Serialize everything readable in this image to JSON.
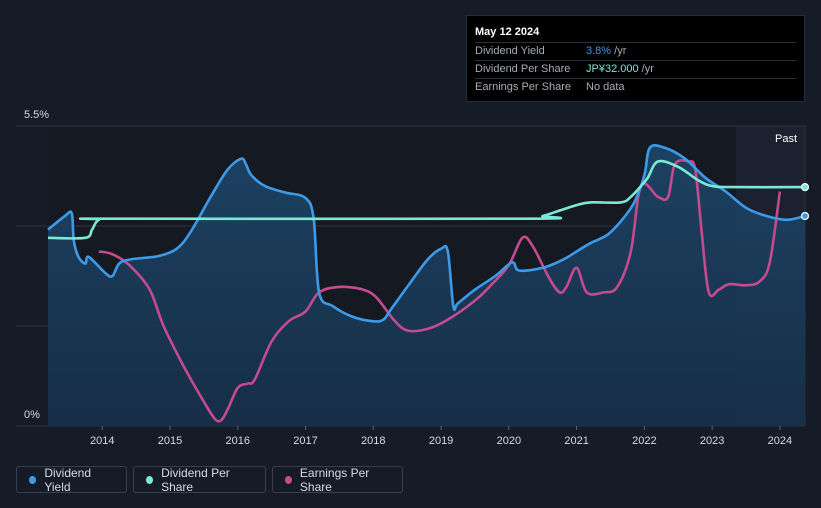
{
  "tooltip": {
    "date": "May 12 2024",
    "rows": [
      {
        "label": "Dividend Yield",
        "value": "3.8%",
        "unit": " /yr",
        "color": "#3d9ae8"
      },
      {
        "label": "Dividend Per Share",
        "value": "JP¥32.000",
        "unit": " /yr",
        "color": "#7ce8d6"
      },
      {
        "label": "Earnings Per Share",
        "value": "No data",
        "unit": "",
        "color": "#a7adb8"
      }
    ]
  },
  "legend": [
    {
      "label": "Dividend Yield",
      "color": "#3d9ae8"
    },
    {
      "label": "Dividend Per Share",
      "color": "#7ce8d6"
    },
    {
      "label": "Earnings Per Share",
      "color": "#c44b8e"
    }
  ],
  "chart_data": {
    "type": "line",
    "y_top_label": "5.5%",
    "y_bottom_label": "0%",
    "past_label": "Past",
    "ylim": [
      0,
      5.5
    ],
    "xlim": [
      2013.2,
      2024.37
    ],
    "x_ticks": [
      2014,
      2015,
      2016,
      2017,
      2018,
      2019,
      2020,
      2021,
      2022,
      2023,
      2024
    ],
    "x_tick_labels": [
      "2014",
      "2015",
      "2016",
      "2017",
      "2018",
      "2019",
      "2020",
      "2021",
      "2022",
      "2023",
      "2024"
    ],
    "past_region_start": 2023.37,
    "series": [
      {
        "name": "Dividend Yield",
        "color": "#3d9ae8",
        "fill": true,
        "points": [
          [
            2013.2,
            3.6
          ],
          [
            2013.45,
            3.85
          ],
          [
            2013.55,
            3.9
          ],
          [
            2013.58,
            3.4
          ],
          [
            2013.65,
            3.1
          ],
          [
            2013.75,
            2.98
          ],
          [
            2013.8,
            3.1
          ],
          [
            2014.05,
            2.8
          ],
          [
            2014.15,
            2.75
          ],
          [
            2014.25,
            2.98
          ],
          [
            2014.4,
            3.05
          ],
          [
            2014.6,
            3.08
          ],
          [
            2014.85,
            3.12
          ],
          [
            2015.1,
            3.25
          ],
          [
            2015.3,
            3.55
          ],
          [
            2015.6,
            4.2
          ],
          [
            2015.85,
            4.7
          ],
          [
            2016.05,
            4.9
          ],
          [
            2016.12,
            4.8
          ],
          [
            2016.2,
            4.6
          ],
          [
            2016.4,
            4.4
          ],
          [
            2016.7,
            4.28
          ],
          [
            2017.0,
            4.18
          ],
          [
            2017.12,
            3.8
          ],
          [
            2017.2,
            2.45
          ],
          [
            2017.4,
            2.2
          ],
          [
            2017.7,
            2.0
          ],
          [
            2018.0,
            1.92
          ],
          [
            2018.15,
            1.95
          ],
          [
            2018.25,
            2.12
          ],
          [
            2018.5,
            2.55
          ],
          [
            2018.8,
            3.05
          ],
          [
            2019.0,
            3.25
          ],
          [
            2019.1,
            3.2
          ],
          [
            2019.18,
            2.2
          ],
          [
            2019.25,
            2.25
          ],
          [
            2019.5,
            2.5
          ],
          [
            2019.8,
            2.75
          ],
          [
            2020.05,
            3.0
          ],
          [
            2020.15,
            2.85
          ],
          [
            2020.5,
            2.9
          ],
          [
            2020.8,
            3.05
          ],
          [
            2021.0,
            3.2
          ],
          [
            2021.2,
            3.35
          ],
          [
            2021.45,
            3.5
          ],
          [
            2021.65,
            3.75
          ],
          [
            2021.85,
            4.1
          ],
          [
            2022.0,
            4.6
          ],
          [
            2022.08,
            5.1
          ],
          [
            2022.3,
            5.1
          ],
          [
            2022.6,
            4.9
          ],
          [
            2022.9,
            4.55
          ],
          [
            2023.2,
            4.3
          ],
          [
            2023.5,
            4.0
          ],
          [
            2023.8,
            3.85
          ],
          [
            2024.1,
            3.78
          ],
          [
            2024.37,
            3.85
          ]
        ]
      },
      {
        "name": "Dividend Per Share",
        "color": "#7ce8d6",
        "fill": false,
        "points": [
          [
            2013.2,
            3.45
          ],
          [
            2013.75,
            3.45
          ],
          [
            2013.85,
            3.6
          ],
          [
            2013.95,
            3.78
          ],
          [
            2014.2,
            3.8
          ],
          [
            2020.25,
            3.8
          ],
          [
            2020.5,
            3.85
          ],
          [
            2020.75,
            3.95
          ],
          [
            2021.0,
            4.05
          ],
          [
            2021.2,
            4.1
          ],
          [
            2021.65,
            4.1
          ],
          [
            2021.8,
            4.2
          ],
          [
            2021.95,
            4.4
          ],
          [
            2022.05,
            4.55
          ],
          [
            2022.2,
            4.85
          ],
          [
            2022.5,
            4.75
          ],
          [
            2022.8,
            4.5
          ],
          [
            2023.0,
            4.4
          ],
          [
            2023.3,
            4.38
          ],
          [
            2024.37,
            4.38
          ]
        ]
      },
      {
        "name": "Earnings Per Share",
        "color": "#c44b8e",
        "fill": false,
        "points": [
          [
            2013.95,
            3.2
          ],
          [
            2014.15,
            3.15
          ],
          [
            2014.4,
            2.95
          ],
          [
            2014.7,
            2.5
          ],
          [
            2014.9,
            1.85
          ],
          [
            2015.2,
            1.1
          ],
          [
            2015.45,
            0.55
          ],
          [
            2015.65,
            0.15
          ],
          [
            2015.75,
            0.1
          ],
          [
            2015.85,
            0.3
          ],
          [
            2016.0,
            0.7
          ],
          [
            2016.15,
            0.78
          ],
          [
            2016.25,
            0.85
          ],
          [
            2016.5,
            1.55
          ],
          [
            2016.75,
            1.92
          ],
          [
            2017.0,
            2.1
          ],
          [
            2017.2,
            2.45
          ],
          [
            2017.5,
            2.55
          ],
          [
            2017.85,
            2.5
          ],
          [
            2018.05,
            2.35
          ],
          [
            2018.3,
            1.95
          ],
          [
            2018.5,
            1.75
          ],
          [
            2018.8,
            1.78
          ],
          [
            2019.1,
            1.95
          ],
          [
            2019.5,
            2.3
          ],
          [
            2019.75,
            2.6
          ],
          [
            2020.0,
            2.95
          ],
          [
            2020.2,
            3.45
          ],
          [
            2020.35,
            3.3
          ],
          [
            2020.6,
            2.7
          ],
          [
            2020.75,
            2.45
          ],
          [
            2020.85,
            2.55
          ],
          [
            2021.0,
            2.9
          ],
          [
            2021.15,
            2.45
          ],
          [
            2021.4,
            2.45
          ],
          [
            2021.6,
            2.55
          ],
          [
            2021.8,
            3.2
          ],
          [
            2021.95,
            4.4
          ],
          [
            2022.2,
            4.2
          ],
          [
            2022.35,
            4.2
          ],
          [
            2022.45,
            4.8
          ],
          [
            2022.65,
            4.85
          ],
          [
            2022.75,
            4.7
          ],
          [
            2022.85,
            3.5
          ],
          [
            2022.95,
            2.45
          ],
          [
            2023.1,
            2.5
          ],
          [
            2023.25,
            2.6
          ],
          [
            2023.5,
            2.58
          ],
          [
            2023.7,
            2.65
          ],
          [
            2023.85,
            3.0
          ],
          [
            2024.0,
            4.3
          ]
        ]
      }
    ]
  }
}
